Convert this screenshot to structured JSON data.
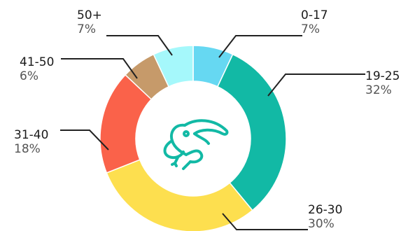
{
  "chart_data": {
    "type": "pie",
    "donut": true,
    "center_icon": "toucan-icon",
    "categories": [
      "0-17",
      "19-25",
      "26-30",
      "31-40",
      "41-50",
      "50+"
    ],
    "values": [
      7,
      32,
      30,
      18,
      6,
      7
    ],
    "value_labels": [
      "7%",
      "32%",
      "30%",
      "18%",
      "6%",
      "7%"
    ],
    "colors": [
      "#66d8f2",
      "#12b9a5",
      "#fddf4f",
      "#fa624a",
      "#c69a6a",
      "#a5f8fb"
    ],
    "legend": "none"
  },
  "colors": {
    "icon": "#12b9a5",
    "leader_line": "#222222"
  }
}
